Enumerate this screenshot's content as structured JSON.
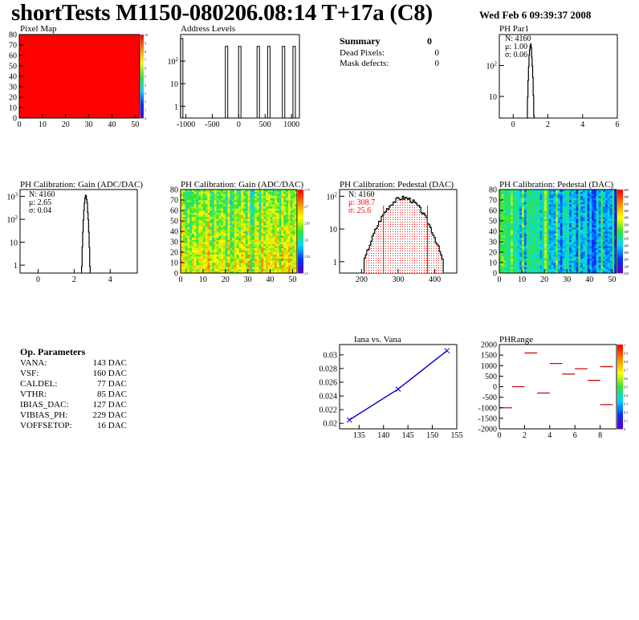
{
  "header": {
    "title": "shortTests M1150-080206.08:14 T+17a (C8)",
    "date": "Wed Feb  6 09:39:37 2008"
  },
  "summary": {
    "heading": "Summary",
    "heading_value": "0",
    "rows": [
      {
        "label": "Dead Pixels:",
        "value": "0"
      },
      {
        "label": "Mask defects:",
        "value": "0"
      }
    ]
  },
  "op_params": {
    "heading": "Op. Parameters",
    "rows": [
      {
        "label": "VANA:",
        "value": "143 DAC"
      },
      {
        "label": "VSF:",
        "value": "160 DAC"
      },
      {
        "label": "CALDEL:",
        "value": "77 DAC"
      },
      {
        "label": "VTHR:",
        "value": "85 DAC"
      },
      {
        "label": "IBIAS_DAC:",
        "value": "127 DAC"
      },
      {
        "label": "VIBIAS_PH:",
        "value": "229 DAC"
      },
      {
        "label": "VOFFSETOP:",
        "value": "16 DAC"
      }
    ]
  },
  "colors": {
    "hist_line": "#000000",
    "stat_red": "#ff0000",
    "fit_line": "#0000cc",
    "range_marker": "#cc0000"
  },
  "chart_data": [
    {
      "id": "pixel_map",
      "type": "heatmap",
      "title": "Pixel Map",
      "xlim": [
        0,
        52
      ],
      "ylim": [
        0,
        80
      ],
      "xticks": [
        "0",
        "10",
        "20",
        "30",
        "40",
        "50"
      ],
      "yticks": [
        "0",
        "10",
        "20",
        "30",
        "40",
        "50",
        "60",
        "70",
        "80"
      ],
      "uniform_color": "#ff0000",
      "colorbar_ticks": [
        "0",
        "1",
        "2",
        "3",
        "4",
        "5",
        "6",
        "7",
        "8",
        "9",
        "10"
      ]
    },
    {
      "id": "address_levels",
      "type": "bar",
      "title": "Address Levels",
      "xlim": [
        -1100,
        1150
      ],
      "ylim": [
        0.3,
        1500
      ],
      "log_y": true,
      "xticks": [
        "-1000",
        "-500",
        "0",
        "500",
        "1000"
      ],
      "yticks": [
        "1",
        "10",
        "10^2"
      ],
      "peaks": [
        {
          "x": -1080,
          "y": 1000
        },
        {
          "x": -230,
          "y": 450
        },
        {
          "x": 20,
          "y": 450
        },
        {
          "x": 370,
          "y": 450
        },
        {
          "x": 570,
          "y": 450
        },
        {
          "x": 850,
          "y": 450
        },
        {
          "x": 1050,
          "y": 450
        }
      ]
    },
    {
      "id": "ph_par1",
      "type": "bar",
      "title": "PH Par1",
      "xlim": [
        -0.8,
        6
      ],
      "ylim": [
        2,
        1000
      ],
      "log_y": true,
      "xticks": [
        "0",
        "2",
        "4",
        "6"
      ],
      "yticks": [
        "10",
        "10^2"
      ],
      "stats": {
        "N": "4160",
        "mean": "1.00",
        "sigma": "0.06"
      },
      "peak": {
        "center": 1.0,
        "sigma": 0.06,
        "height": 450
      }
    },
    {
      "id": "gain_hist",
      "type": "bar",
      "title": "PH Calibration: Gain (ADC/DAC)",
      "xlim": [
        -1,
        5.5
      ],
      "ylim": [
        0.45,
        2000
      ],
      "log_y": true,
      "xticks": [
        "0",
        "2",
        "4"
      ],
      "yticks": [
        "1",
        "10",
        "10^2",
        "10^3"
      ],
      "stats": {
        "N": "4160",
        "mean": "2.65",
        "sigma": "0.04"
      },
      "peak": {
        "center": 2.65,
        "sigma": 0.06,
        "height": 1100
      }
    },
    {
      "id": "gain_map",
      "type": "heatmap",
      "title": "PH Calibration: Gain (ADC/DAC)",
      "xlim": [
        0,
        52
      ],
      "ylim": [
        0,
        80
      ],
      "xticks": [
        "0",
        "10",
        "20",
        "30",
        "40",
        "50"
      ],
      "yticks": [
        "0",
        "10",
        "20",
        "30",
        "40",
        "50",
        "60",
        "70",
        "80"
      ],
      "colorbar_ticks": [
        "2.5",
        "2.55",
        "2.6",
        "2.65",
        "2.7",
        "2.75"
      ]
    },
    {
      "id": "pedestal_hist",
      "type": "bar",
      "title": "PH Calibration: Pedestal (DAC)",
      "xlim": [
        140,
        460
      ],
      "ylim": [
        0.45,
        160
      ],
      "log_y": true,
      "xticks": [
        "200",
        "300",
        "400"
      ],
      "yticks": [
        "1",
        "10",
        "10^2"
      ],
      "stats": {
        "N": "4160",
        "mean": "308.7",
        "sigma": "25.6"
      },
      "peak": {
        "center": 315,
        "sigma": 36,
        "height": 90
      },
      "markers": [
        260,
        380
      ]
    },
    {
      "id": "pedestal_map",
      "type": "heatmap",
      "title": "PH Calibration: Pedestal (DAC)",
      "xlim": [
        0,
        52
      ],
      "ylim": [
        0,
        80
      ],
      "xticks": [
        "0",
        "10",
        "20",
        "30",
        "40",
        "50"
      ],
      "yticks": [
        "0",
        "10",
        "20",
        "30",
        "40",
        "50",
        "60",
        "70",
        "80"
      ],
      "colorbar_ticks": [
        "220",
        "240",
        "260",
        "280",
        "300",
        "320",
        "340",
        "360",
        "380",
        "400",
        "420",
        "440",
        "460"
      ]
    },
    {
      "id": "iana_vana",
      "type": "line",
      "title": "Iana vs. Vana",
      "x": [
        133,
        143,
        153
      ],
      "y": [
        0.0205,
        0.025,
        0.0306
      ],
      "xlim": [
        131,
        155
      ],
      "ylim": [
        0.0192,
        0.0315
      ],
      "xticks": [
        "135",
        "140",
        "145",
        "150",
        "155"
      ],
      "yticks": [
        "0.02",
        "0.022",
        "0.024",
        "0.026",
        "0.028",
        "0.03"
      ]
    },
    {
      "id": "ph_range",
      "type": "scatter",
      "title": "PHRange",
      "xlim": [
        0,
        9.3
      ],
      "ylim": [
        -2000,
        2000
      ],
      "xticks": [
        "0",
        "2",
        "4",
        "6",
        "8"
      ],
      "yticks": [
        "-2000",
        "-1500",
        "-1000",
        "-500",
        "0",
        "500",
        "1000",
        "1500",
        "2000"
      ],
      "segments": [
        {
          "x": 0,
          "y": -1000
        },
        {
          "x": 1,
          "y": 0
        },
        {
          "x": 2,
          "y": 1600
        },
        {
          "x": 3,
          "y": -300
        },
        {
          "x": 4,
          "y": 1100
        },
        {
          "x": 5,
          "y": 600
        },
        {
          "x": 6,
          "y": 850
        },
        {
          "x": 7,
          "y": 300
        },
        {
          "x": 8,
          "y": 950
        },
        {
          "x": 8,
          "y": -850
        }
      ],
      "colorbar_ticks": [
        "0",
        "0.1",
        "0.2",
        "0.3",
        "0.4",
        "0.5",
        "0.6",
        "0.7",
        "0.8",
        "0.9",
        "1"
      ]
    }
  ]
}
